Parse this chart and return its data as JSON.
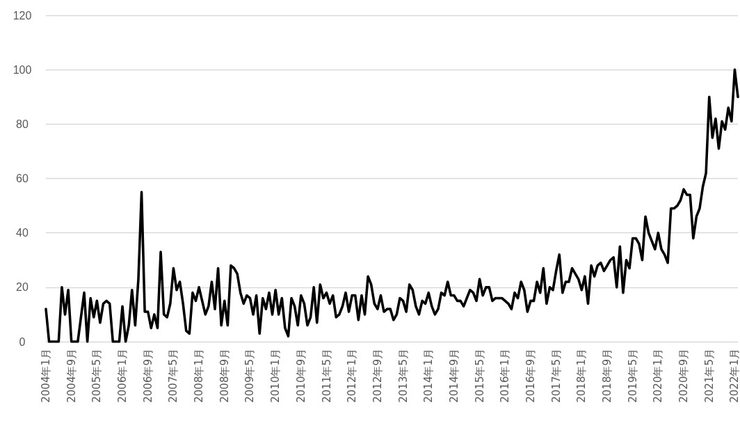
{
  "chart_data": {
    "type": "line",
    "categories": [
      "2004年1月",
      null,
      null,
      null,
      null,
      null,
      null,
      null,
      "2004年9月",
      null,
      null,
      null,
      null,
      null,
      null,
      null,
      "2005年5月",
      null,
      null,
      null,
      null,
      null,
      null,
      null,
      "2006年1月",
      null,
      null,
      null,
      null,
      null,
      null,
      null,
      "2006年9月",
      null,
      null,
      null,
      null,
      null,
      null,
      null,
      "2007年5月",
      null,
      null,
      null,
      null,
      null,
      null,
      null,
      "2008年1月",
      null,
      null,
      null,
      null,
      null,
      null,
      null,
      "2008年9月",
      null,
      null,
      null,
      null,
      null,
      null,
      null,
      "2009年5月",
      null,
      null,
      null,
      null,
      null,
      null,
      null,
      "2010年1月",
      null,
      null,
      null,
      null,
      null,
      null,
      null,
      "2010年9月",
      null,
      null,
      null,
      null,
      null,
      null,
      null,
      "2011年5月",
      null,
      null,
      null,
      null,
      null,
      null,
      null,
      "2012年1月",
      null,
      null,
      null,
      null,
      null,
      null,
      null,
      "2012年9月",
      null,
      null,
      null,
      null,
      null,
      null,
      null,
      "2013年5月",
      null,
      null,
      null,
      null,
      null,
      null,
      null,
      "2014年1月",
      null,
      null,
      null,
      null,
      null,
      null,
      null,
      "2014年9月",
      null,
      null,
      null,
      null,
      null,
      null,
      null,
      "2015年5月",
      null,
      null,
      null,
      null,
      null,
      null,
      null,
      "2016年1月",
      null,
      null,
      null,
      null,
      null,
      null,
      null,
      "2016年9月",
      null,
      null,
      null,
      null,
      null,
      null,
      null,
      "2017年5月",
      null,
      null,
      null,
      null,
      null,
      null,
      null,
      "2018年1月",
      null,
      null,
      null,
      null,
      null,
      null,
      null,
      "2018年9月",
      null,
      null,
      null,
      null,
      null,
      null,
      null,
      "2019年5月",
      null,
      null,
      null,
      null,
      null,
      null,
      null,
      "2020年1月",
      null,
      null,
      null,
      null,
      null,
      null,
      null,
      "2020年9月",
      null,
      null,
      null,
      null,
      null,
      null,
      null,
      "2021年5月",
      null,
      null,
      null,
      null,
      null,
      null,
      null,
      "2022年1月",
      null
    ],
    "series": [
      {
        "color": "#000000",
        "values": [
          12,
          0,
          0,
          0,
          0,
          20,
          10,
          19,
          0,
          0,
          0,
          9,
          18,
          0,
          16,
          9,
          15,
          7,
          14,
          15,
          14,
          0,
          0,
          0,
          13,
          0,
          6,
          19,
          6,
          23,
          55,
          11,
          11,
          5,
          10,
          5,
          33,
          10,
          9,
          14,
          27,
          19,
          22,
          14,
          4,
          3,
          18,
          15,
          20,
          15,
          10,
          13,
          22,
          12,
          27,
          6,
          15,
          6,
          28,
          27,
          25,
          18,
          14,
          17,
          16,
          10,
          17,
          3,
          16,
          12,
          18,
          10,
          19,
          10,
          16,
          5,
          2,
          16,
          13,
          6,
          17,
          14,
          6,
          9,
          20,
          7,
          21,
          16,
          18,
          14,
          17,
          9,
          10,
          13,
          18,
          11,
          17,
          17,
          8,
          17,
          10,
          24,
          21,
          14,
          12,
          17,
          11,
          12,
          12,
          8,
          10,
          16,
          15,
          11,
          21,
          19,
          13,
          10,
          15,
          14,
          18,
          13,
          10,
          12,
          18,
          17,
          22,
          17,
          17,
          15,
          15,
          13,
          16,
          19,
          18,
          15,
          23,
          17,
          20,
          20,
          15,
          16,
          16,
          16,
          15,
          14,
          12,
          18,
          16,
          22,
          19,
          11,
          15,
          15,
          22,
          18,
          27,
          14,
          20,
          19,
          26,
          32,
          18,
          22,
          22,
          27,
          25,
          23,
          19,
          24,
          14,
          28,
          24,
          28,
          29,
          26,
          28,
          30,
          31,
          20,
          35,
          18,
          30,
          27,
          38,
          38,
          36,
          30,
          46,
          40,
          37,
          34,
          40,
          34,
          32,
          29,
          49,
          49,
          50,
          52,
          56,
          54,
          54,
          38,
          46,
          49,
          57,
          62,
          90,
          75,
          82,
          71,
          81,
          78,
          86,
          81,
          100,
          90
        ]
      }
    ],
    "ylim": [
      0,
      120
    ],
    "yticks": [
      0,
      20,
      40,
      60,
      80,
      100,
      120
    ],
    "grid": "y",
    "marker": "none",
    "line_style": "solid"
  }
}
